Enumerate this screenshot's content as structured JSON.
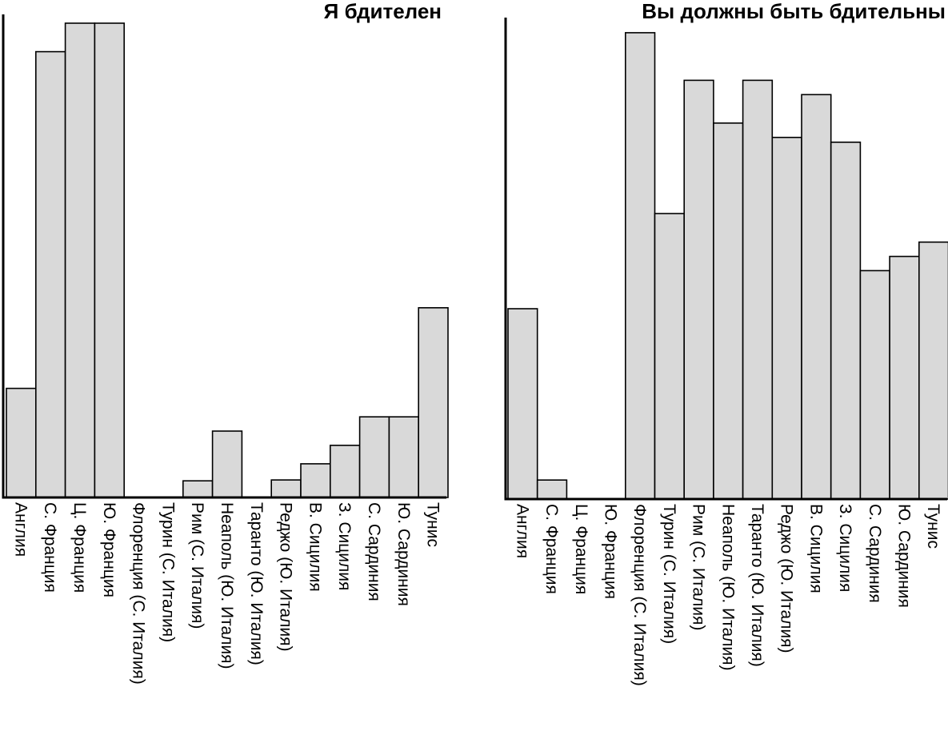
{
  "chart_data": [
    {
      "type": "bar",
      "title": "Я бдителен",
      "xlabel": "",
      "ylabel": "",
      "ylim": [
        0,
        100
      ],
      "categories": [
        "Англия",
        "С. Франция",
        "Ц. Франция",
        "Ю. Франция",
        "Флоренция (С. Италия)",
        "Турин (С. Италия)",
        "Рим (С. Италия)",
        "Неаполь (Ю. Италия)",
        "Таранто (Ю. Италия)",
        "Реджо (Ю. Италия)",
        "В. Сицилия",
        "З. Сицилия",
        "С. Сардиния",
        "Ю. Сардиния",
        "Тунис"
      ],
      "values": [
        23,
        94,
        100,
        100,
        0,
        0,
        3.5,
        14,
        0,
        3.7,
        7.1,
        11,
        17,
        17,
        40
      ]
    },
    {
      "type": "bar",
      "title": "Вы должны быть бдительны",
      "xlabel": "",
      "ylabel": "",
      "ylim": [
        0,
        100
      ],
      "categories": [
        "Англия",
        "С. Франция",
        "Ц. Франция",
        "Ю. Франция",
        "Флоренция (С. Италия)",
        "Турин (С. Италия)",
        "Рим (С. Италия)",
        "Неаполь (Ю. Италия)",
        "Таранто (Ю. Италия)",
        "Реджо (Ю. Италия)",
        "В. Сицилия",
        "З. Сицилия",
        "С. Сардиния",
        "Ю. Сардиния",
        "Тунис"
      ],
      "values": [
        40,
        4,
        0,
        0,
        98,
        60,
        88,
        79,
        88,
        76,
        85,
        75,
        48,
        51,
        54
      ]
    }
  ]
}
